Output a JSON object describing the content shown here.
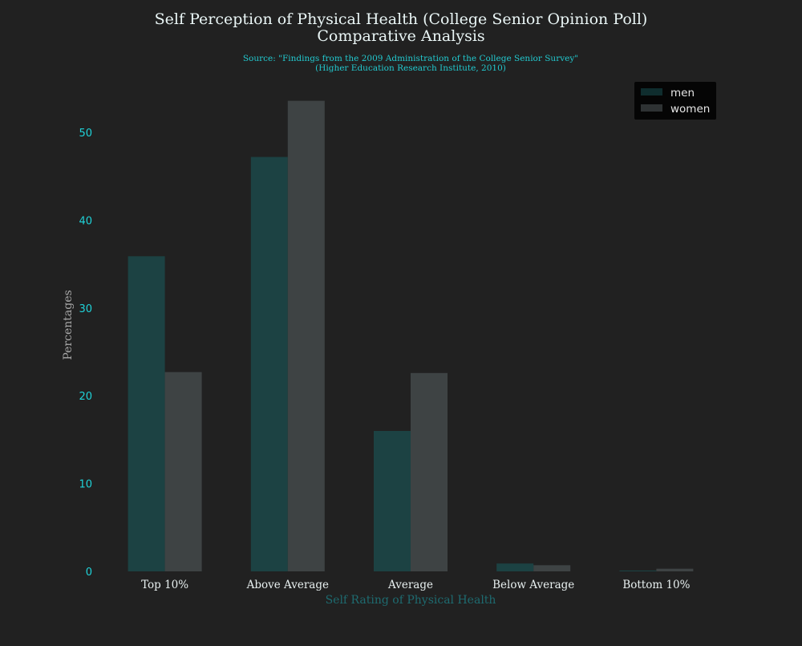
{
  "chart_data": {
    "type": "bar",
    "title": "Self Perception of Physical Health (College Senior Opinion Poll)",
    "subtitle": "Comparative Analysis",
    "source_lines": [
      "Source: \"Findings from the 2009 Administration of the College Senior Survey\"",
      "(Higher Education Research Institute, 2010)"
    ],
    "xlabel": "Self Rating of Physical Health",
    "ylabel": "Percentages",
    "categories": [
      "Top 10%",
      "Above Average",
      "Average",
      "Below Average",
      "Bottom 10%"
    ],
    "series": [
      {
        "name": "men",
        "values": [
          35.9,
          47.2,
          16.0,
          0.9,
          0.1
        ],
        "color": "#1c4243"
      },
      {
        "name": "women",
        "values": [
          22.7,
          53.6,
          22.6,
          0.7,
          0.3
        ],
        "color": "#3e4344"
      }
    ],
    "ylim": [
      0,
      55
    ],
    "yticks": [
      0,
      10,
      20,
      30,
      40,
      50
    ],
    "grid": false,
    "legend_position": "top-right",
    "colors": {
      "background": "#212121",
      "legend_background": "#050505",
      "ytick_color": "#1fd3d9",
      "source_color": "#22c9cf"
    }
  }
}
